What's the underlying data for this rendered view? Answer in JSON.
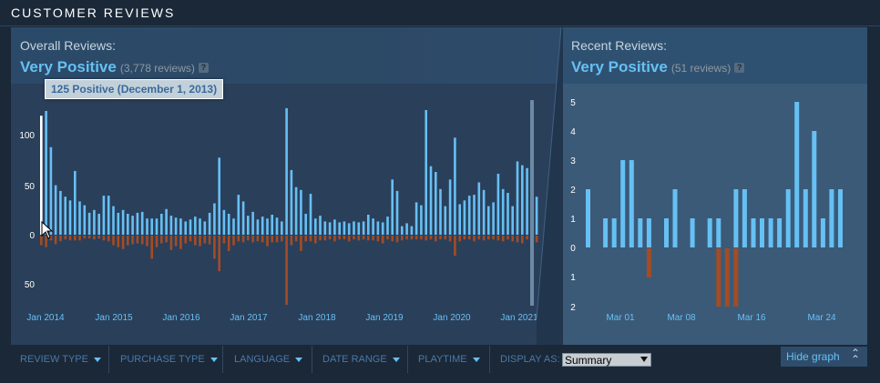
{
  "header": {
    "title": "CUSTOMER REVIEWS"
  },
  "overall": {
    "label": "Overall Reviews:",
    "summary": "Very Positive",
    "count": "(3,778 reviews)",
    "help": "?"
  },
  "recent": {
    "label": "Recent Reviews:",
    "summary": "Very Positive",
    "count": "(51 reviews)",
    "help": "?"
  },
  "tooltip": {
    "text": "125 Positive (December 1, 2013)"
  },
  "filters": {
    "review_type": "REVIEW TYPE",
    "purchase_type": "PURCHASE TYPE",
    "language": "LANGUAGE",
    "date_range": "DATE RANGE",
    "playtime": "PLAYTIME",
    "display_as": "DISPLAY AS:",
    "display_value": "Summary"
  },
  "hide_graph": {
    "label": "Hide graph"
  },
  "colors": {
    "positive": "#66c0f4",
    "negative": "#a34c25",
    "highlight": "#ffffff",
    "accent": "#66c0f4"
  },
  "chart_data": [
    {
      "type": "bar",
      "name": "overall",
      "x_ticks": [
        "Jan 2014",
        "Jan 2015",
        "Jan 2016",
        "Jan 2017",
        "Jan 2018",
        "Jan 2019",
        "Jan 2020",
        "Jan 2021"
      ],
      "y_ticks_positive": [
        "100",
        "50",
        "0"
      ],
      "y_ticks_negative": [
        "50"
      ],
      "highlight_index": 0,
      "positive": [
        125,
        130,
        92,
        52,
        46,
        40,
        36,
        67,
        35,
        31,
        23,
        26,
        22,
        41,
        41,
        30,
        23,
        26,
        22,
        20,
        23,
        24,
        17,
        17,
        17,
        22,
        27,
        20,
        18,
        17,
        14,
        16,
        19,
        17,
        14,
        23,
        33,
        81,
        26,
        22,
        17,
        42,
        35,
        20,
        24,
        16,
        19,
        17,
        21,
        18,
        14,
        133,
        68,
        50,
        47,
        22,
        43,
        17,
        20,
        14,
        13,
        16,
        13,
        14,
        12,
        14,
        13,
        14,
        21,
        17,
        14,
        13,
        19,
        58,
        46,
        9,
        12,
        9,
        34,
        31,
        131,
        72,
        66,
        48,
        30,
        58,
        102,
        32,
        36,
        41,
        42,
        55,
        47,
        30,
        34,
        64,
        48,
        44,
        30,
        77,
        73,
        70,
        45,
        40
      ],
      "negative": [
        10,
        12,
        5,
        9,
        6,
        4,
        5,
        5,
        5,
        3,
        3,
        4,
        3,
        5,
        6,
        10,
        12,
        14,
        10,
        9,
        8,
        9,
        11,
        24,
        12,
        8,
        7,
        15,
        11,
        14,
        8,
        6,
        10,
        11,
        8,
        9,
        24,
        37,
        8,
        16,
        10,
        6,
        7,
        5,
        7,
        6,
        7,
        11,
        7,
        7,
        6,
        72,
        10,
        6,
        16,
        6,
        6,
        8,
        5,
        5,
        4,
        6,
        4,
        4,
        6,
        4,
        5,
        4,
        5,
        5,
        6,
        8,
        4,
        6,
        7,
        5,
        4,
        4,
        4,
        4,
        5,
        4,
        6,
        4,
        4,
        6,
        21,
        6,
        4,
        4,
        6,
        4,
        5,
        4,
        4,
        5,
        6,
        4,
        6,
        7,
        8,
        4,
        5,
        7
      ],
      "ylim_positive": [
        0,
        130
      ],
      "ylim_negative": [
        0,
        70
      ]
    },
    {
      "type": "bar",
      "name": "recent",
      "x_ticks": [
        "Mar 01",
        "Mar 08",
        "Mar 16",
        "Mar 24"
      ],
      "y_ticks_positive": [
        "5",
        "4",
        "3",
        "2",
        "1",
        "0"
      ],
      "y_ticks_negative": [
        "1",
        "2"
      ],
      "positive": [
        2,
        0,
        1,
        1,
        3,
        3,
        1,
        1,
        0,
        1,
        2,
        0,
        1,
        0,
        1,
        1,
        0,
        2,
        2,
        1,
        1,
        1,
        1,
        2,
        5,
        2,
        4,
        1,
        2,
        2
      ],
      "negative": [
        0,
        0,
        0,
        0,
        0,
        0,
        0,
        1,
        0,
        0,
        0,
        0,
        0,
        0,
        0,
        2,
        2,
        2,
        0,
        0,
        0,
        0,
        0,
        0,
        0,
        0,
        0,
        0,
        0,
        0
      ],
      "ylim_positive": [
        0,
        5
      ],
      "ylim_negative": [
        0,
        2
      ]
    }
  ]
}
